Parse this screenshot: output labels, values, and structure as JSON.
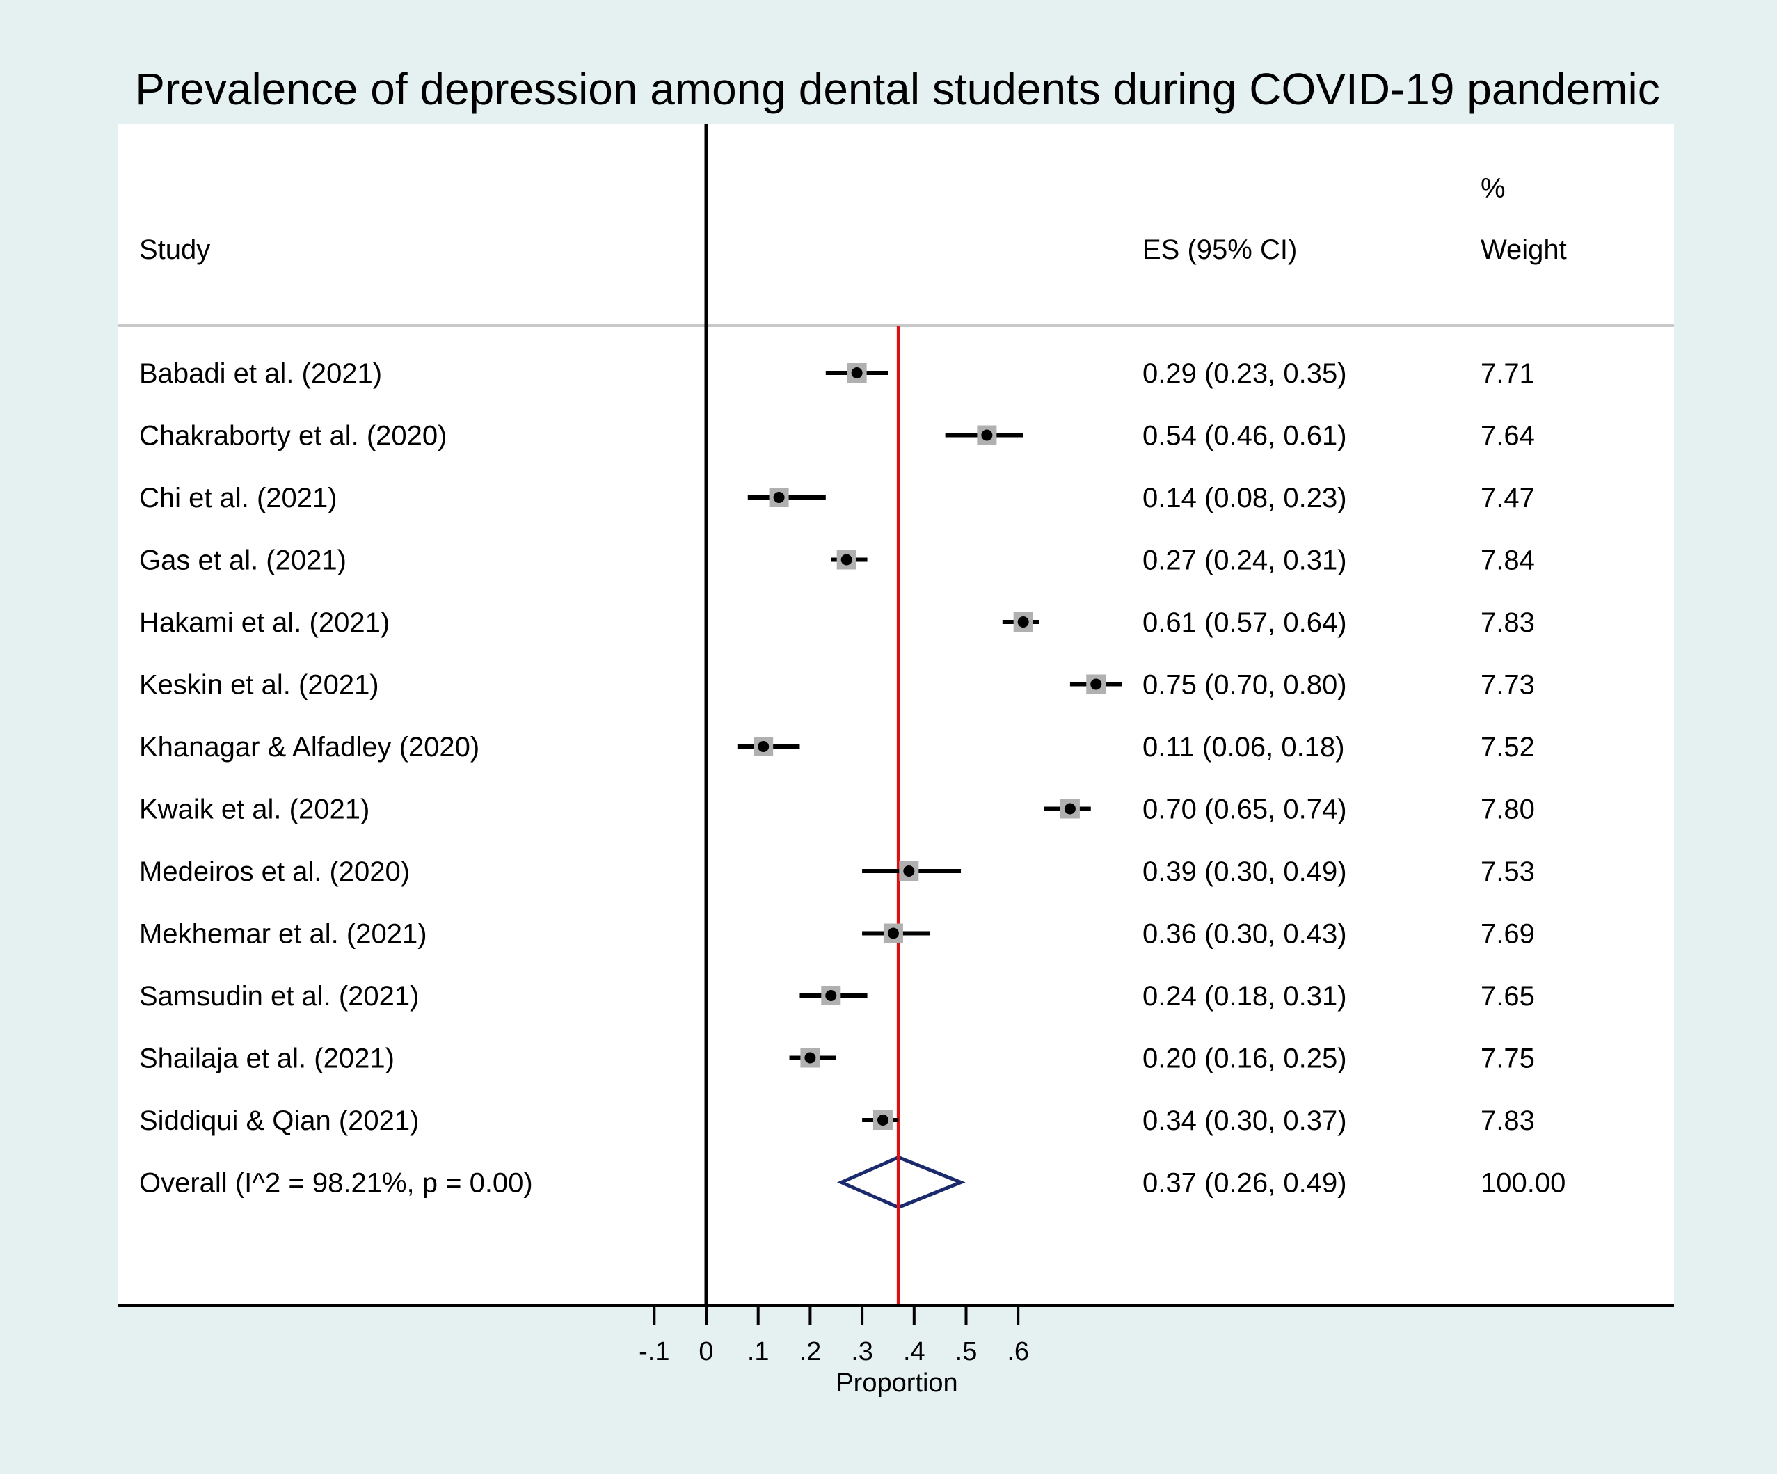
{
  "chart_data": {
    "type": "forest",
    "title": "Prevalence of depression among dental students during COVID-19 pandemic",
    "columns": {
      "study": "Study",
      "es": "ES (95% CI)",
      "weight_line1": "%",
      "weight_line2": "Weight"
    },
    "studies": [
      {
        "label": "Babadi et al. (2021)",
        "es": 0.29,
        "lo": 0.23,
        "hi": 0.35,
        "es_text": "0.29 (0.23, 0.35)",
        "weight": "7.71"
      },
      {
        "label": "Chakraborty et al. (2020)",
        "es": 0.54,
        "lo": 0.46,
        "hi": 0.61,
        "es_text": "0.54 (0.46, 0.61)",
        "weight": "7.64"
      },
      {
        "label": "Chi et al. (2021)",
        "es": 0.14,
        "lo": 0.08,
        "hi": 0.23,
        "es_text": "0.14 (0.08, 0.23)",
        "weight": "7.47"
      },
      {
        "label": "Gas et al. (2021)",
        "es": 0.27,
        "lo": 0.24,
        "hi": 0.31,
        "es_text": "0.27 (0.24, 0.31)",
        "weight": "7.84"
      },
      {
        "label": "Hakami et al. (2021)",
        "es": 0.61,
        "lo": 0.57,
        "hi": 0.64,
        "es_text": "0.61 (0.57, 0.64)",
        "weight": "7.83"
      },
      {
        "label": "Keskin et al. (2021)",
        "es": 0.75,
        "lo": 0.7,
        "hi": 0.8,
        "es_text": "0.75 (0.70, 0.80)",
        "weight": "7.73"
      },
      {
        "label": "Khanagar & Alfadley (2020)",
        "es": 0.11,
        "lo": 0.06,
        "hi": 0.18,
        "es_text": "0.11 (0.06, 0.18)",
        "weight": "7.52"
      },
      {
        "label": "Kwaik et al. (2021)",
        "es": 0.7,
        "lo": 0.65,
        "hi": 0.74,
        "es_text": "0.70 (0.65, 0.74)",
        "weight": "7.80"
      },
      {
        "label": "Medeiros et al. (2020)",
        "es": 0.39,
        "lo": 0.3,
        "hi": 0.49,
        "es_text": "0.39 (0.30, 0.49)",
        "weight": "7.53"
      },
      {
        "label": "Mekhemar et al. (2021)",
        "es": 0.36,
        "lo": 0.3,
        "hi": 0.43,
        "es_text": "0.36 (0.30, 0.43)",
        "weight": "7.69"
      },
      {
        "label": "Samsudin et al. (2021)",
        "es": 0.24,
        "lo": 0.18,
        "hi": 0.31,
        "es_text": "0.24 (0.18, 0.31)",
        "weight": "7.65"
      },
      {
        "label": "Shailaja et al. (2021)",
        "es": 0.2,
        "lo": 0.16,
        "hi": 0.25,
        "es_text": "0.20 (0.16, 0.25)",
        "weight": "7.75"
      },
      {
        "label": "Siddiqui & Qian (2021)",
        "es": 0.34,
        "lo": 0.3,
        "hi": 0.37,
        "es_text": "0.34 (0.30, 0.37)",
        "weight": "7.83"
      }
    ],
    "overall": {
      "label": "Overall  (I^2 = 98.21%, p = 0.00)",
      "es": 0.37,
      "lo": 0.26,
      "hi": 0.49,
      "es_text": "0.37 (0.26, 0.49)",
      "weight": "100.00"
    },
    "xaxis": {
      "label": "Proportion",
      "ticks": [
        -0.1,
        0,
        0.1,
        0.2,
        0.3,
        0.4,
        0.5,
        0.6
      ],
      "tick_labels": [
        "-.1",
        "0",
        ".1",
        ".2",
        ".3",
        ".4",
        ".5",
        ".6"
      ],
      "null_line": 0,
      "overall_line": 0.37
    },
    "colors": {
      "background": "#e5f0f0",
      "plot_bg": "#ffffff",
      "marker": "#000000",
      "marker_box": "#b0b0b0",
      "overall_line": "#dd1111",
      "diamond": "#1a2a6c",
      "separator": "#c8c8c8",
      "text": "#000000"
    }
  }
}
